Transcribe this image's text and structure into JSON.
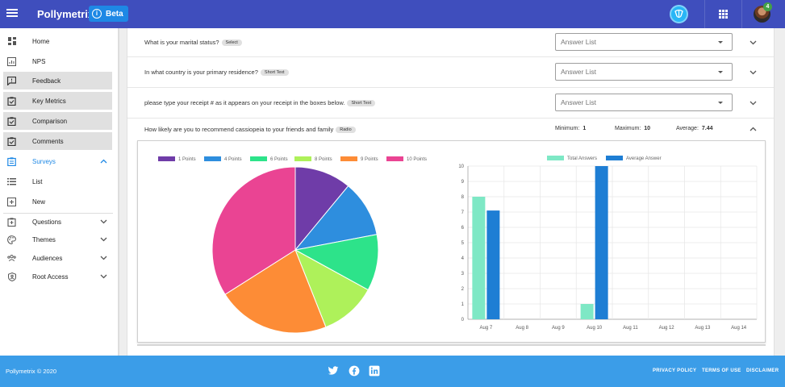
{
  "header": {
    "brand": "Pollymetrix",
    "beta_label": "Beta",
    "notification_count": "4"
  },
  "sidebar": {
    "items": [
      {
        "label": "Home",
        "icon": "dashboard-icon"
      },
      {
        "label": "NPS",
        "icon": "nps-chart-icon"
      },
      {
        "label": "Feedback",
        "icon": "feedback-icon"
      },
      {
        "label": "Key Metrics",
        "icon": "clipboard-check-icon"
      },
      {
        "label": "Comparison",
        "icon": "clipboard-check-icon"
      },
      {
        "label": "Comments",
        "icon": "clipboard-check-icon"
      },
      {
        "label": "Surveys",
        "icon": "survey-icon"
      },
      {
        "label": "List",
        "icon": "list-icon"
      },
      {
        "label": "New",
        "icon": "add-box-icon"
      },
      {
        "label": "Questions",
        "icon": "question-clipboard-icon"
      },
      {
        "label": "Themes",
        "icon": "palette-icon"
      },
      {
        "label": "Audiences",
        "icon": "people-icon"
      },
      {
        "label": "Root Access",
        "icon": "shield-icon"
      }
    ]
  },
  "questions": [
    {
      "text": "What is your marital status?",
      "type": "Select",
      "placeholder": "Answer List"
    },
    {
      "text": "In what country is your primary residence?",
      "type": "Short Text",
      "placeholder": "Answer List"
    },
    {
      "text": "please type your receipt # as it appears on your receipt in the boxes below.",
      "type": "Short Text",
      "placeholder": "Answer List"
    },
    {
      "text": "How likely are you to recommend cassiopeia to your friends and family",
      "type": "Radio"
    }
  ],
  "stats": {
    "minimum_label": "Minimum:",
    "minimum_value": "1",
    "maximum_label": "Maximum:",
    "maximum_value": "10",
    "average_label": "Average:",
    "average_value": "7.44"
  },
  "chart_data": [
    {
      "type": "pie",
      "categories": [
        "1 Points",
        "4 Points",
        "6 Points",
        "8 Points",
        "9 Points",
        "10 Points"
      ],
      "values": [
        11,
        11,
        11,
        11,
        22,
        34
      ],
      "colors": [
        "#6f3ca8",
        "#2e8ede",
        "#2de38a",
        "#aef15a",
        "#fd8c36",
        "#ea4493"
      ],
      "legend": "top"
    },
    {
      "type": "bar",
      "categories": [
        "Aug 7",
        "Aug 8",
        "Aug 9",
        "Aug 10",
        "Aug 11",
        "Aug 12",
        "Aug 13",
        "Aug 14"
      ],
      "series": [
        {
          "name": "Total Answers",
          "color": "#7ee8c5",
          "values": [
            8,
            0,
            0,
            1,
            0,
            0,
            0,
            0
          ]
        },
        {
          "name": "Average Answer",
          "color": "#1e7ed4",
          "values": [
            7.1,
            0,
            0,
            10,
            0,
            0,
            0,
            0
          ]
        }
      ],
      "ylim": [
        0,
        10
      ],
      "yticks": [
        0,
        1,
        2,
        3,
        4,
        5,
        6,
        7,
        8,
        9,
        10
      ],
      "grid": true,
      "legend": "top"
    }
  ],
  "footer": {
    "copyright": "Pollymetrix © 2020",
    "links": [
      "PRIVACY POLICY",
      "TERMS OF USE",
      "DISCLAIMER"
    ]
  }
}
